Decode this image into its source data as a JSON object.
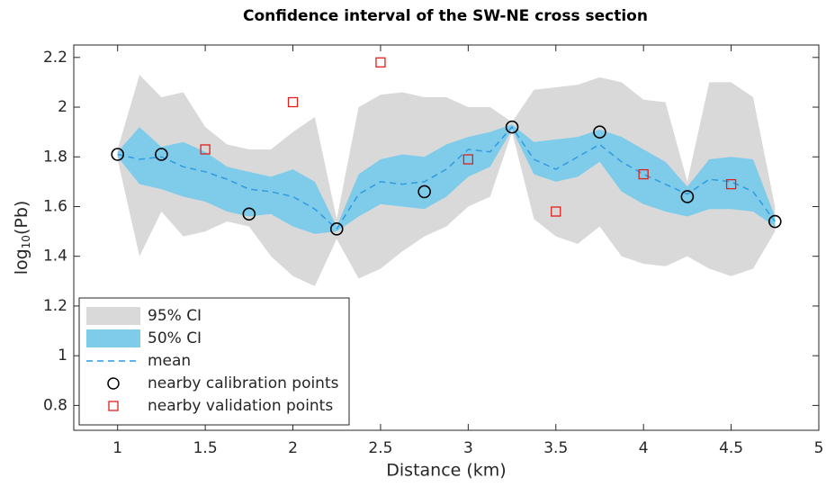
{
  "chart_data": {
    "type": "line",
    "title": "Confidence interval of the SW-NE cross section",
    "x_label": "Distance (km)",
    "y_label": {
      "base": "log",
      "sub": "10",
      "rest": "(Pb)"
    },
    "xlim": [
      0.75,
      5
    ],
    "xticks": [
      1,
      1.5,
      2,
      2.5,
      3,
      3.5,
      4,
      4.5,
      5
    ],
    "ylim": [
      0.7,
      2.25
    ],
    "yticks": [
      0.8,
      1,
      1.2,
      1.4,
      1.6,
      1.8,
      2,
      2.2
    ],
    "grid": false,
    "legend": "lower left",
    "x": [
      1,
      1.125,
      1.25,
      1.375,
      1.5,
      1.625,
      1.75,
      1.875,
      2,
      2.125,
      2.25,
      2.375,
      2.5,
      2.625,
      2.75,
      2.875,
      3,
      3.125,
      3.25,
      3.375,
      3.5,
      3.625,
      3.75,
      3.875,
      4,
      4.125,
      4.25,
      4.375,
      4.5,
      4.625,
      4.75
    ],
    "series": [
      {
        "name": "95% CI",
        "kind": "band",
        "color": "#d9d9d9",
        "upper": [
          1.83,
          2.13,
          2.04,
          2.06,
          1.92,
          1.85,
          1.83,
          1.83,
          1.9,
          1.96,
          1.55,
          2.0,
          2.05,
          2.06,
          2.04,
          2.04,
          2.0,
          2.0,
          1.94,
          2.07,
          2.08,
          2.09,
          2.12,
          2.1,
          2.03,
          2.02,
          1.7,
          2.1,
          2.1,
          2.04,
          1.6
        ],
        "lower": [
          1.79,
          1.4,
          1.58,
          1.48,
          1.5,
          1.54,
          1.52,
          1.4,
          1.32,
          1.28,
          1.47,
          1.31,
          1.35,
          1.42,
          1.48,
          1.52,
          1.6,
          1.64,
          1.9,
          1.55,
          1.48,
          1.45,
          1.52,
          1.4,
          1.37,
          1.36,
          1.4,
          1.35,
          1.32,
          1.35,
          1.5
        ]
      },
      {
        "name": "50% CI",
        "kind": "band",
        "color": "#7fcbea",
        "upper": [
          1.82,
          1.92,
          1.84,
          1.86,
          1.82,
          1.76,
          1.74,
          1.72,
          1.75,
          1.7,
          1.52,
          1.73,
          1.79,
          1.81,
          1.8,
          1.85,
          1.88,
          1.9,
          1.93,
          1.86,
          1.87,
          1.88,
          1.91,
          1.88,
          1.83,
          1.78,
          1.68,
          1.79,
          1.8,
          1.79,
          1.56
        ],
        "lower": [
          1.8,
          1.69,
          1.67,
          1.64,
          1.62,
          1.58,
          1.56,
          1.57,
          1.52,
          1.49,
          1.5,
          1.56,
          1.61,
          1.6,
          1.59,
          1.64,
          1.72,
          1.76,
          1.91,
          1.73,
          1.7,
          1.72,
          1.78,
          1.66,
          1.61,
          1.58,
          1.56,
          1.59,
          1.59,
          1.58,
          1.52
        ]
      },
      {
        "name": "mean",
        "kind": "line",
        "color": "#2f9be0",
        "values": [
          1.81,
          1.79,
          1.8,
          1.76,
          1.74,
          1.71,
          1.67,
          1.66,
          1.64,
          1.59,
          1.51,
          1.65,
          1.7,
          1.69,
          1.7,
          1.75,
          1.83,
          1.82,
          1.92,
          1.79,
          1.75,
          1.8,
          1.85,
          1.78,
          1.73,
          1.69,
          1.65,
          1.71,
          1.7,
          1.66,
          1.54
        ]
      },
      {
        "name": "nearby calibration points",
        "kind": "circle",
        "color": "#000000",
        "x": [
          1,
          1.25,
          1.75,
          2.25,
          2.75,
          3.25,
          3.75,
          4.25,
          4.75
        ],
        "values": [
          1.81,
          1.81,
          1.57,
          1.51,
          1.66,
          1.92,
          1.9,
          1.64,
          1.54
        ]
      },
      {
        "name": "nearby validation points",
        "kind": "square",
        "color": "#e0201b",
        "x": [
          1.5,
          2,
          2.5,
          3,
          3.5,
          4,
          4.5
        ],
        "values": [
          1.83,
          2.02,
          2.18,
          1.79,
          1.58,
          1.73,
          1.69
        ]
      }
    ]
  }
}
